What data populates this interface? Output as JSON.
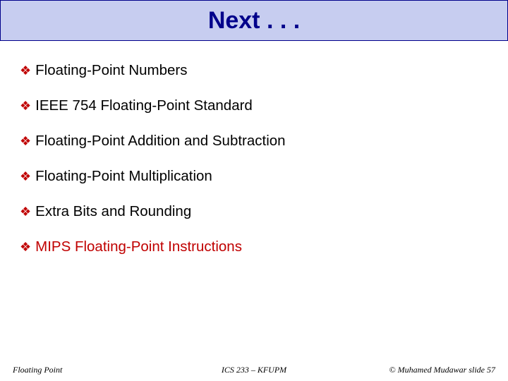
{
  "title": "Next . . .",
  "bullets": [
    {
      "text": "Floating-Point Numbers",
      "highlight": false
    },
    {
      "text": "IEEE 754 Floating-Point Standard",
      "highlight": false
    },
    {
      "text": "Floating-Point Addition and Subtraction",
      "highlight": false
    },
    {
      "text": "Floating-Point Multiplication",
      "highlight": false
    },
    {
      "text": "Extra Bits and Rounding",
      "highlight": false
    },
    {
      "text": "MIPS Floating-Point Instructions",
      "highlight": true
    }
  ],
  "footer": {
    "left": "Floating Point",
    "center": "ICS 233 – KFUPM",
    "right": "© Muhamed Mudawar  slide 57"
  },
  "colors": {
    "title_bar_bg": "#c7cdf0",
    "title_border": "#00008b",
    "title_text": "#00008b",
    "bullet_icon": "#c00000",
    "highlight_text": "#c00000",
    "body_text": "#000000",
    "background": "#ffffff"
  },
  "typography": {
    "title_font": "Comic Sans MS",
    "title_size_pt": 26,
    "bullet_size_pt": 15,
    "footer_size_pt": 9
  }
}
